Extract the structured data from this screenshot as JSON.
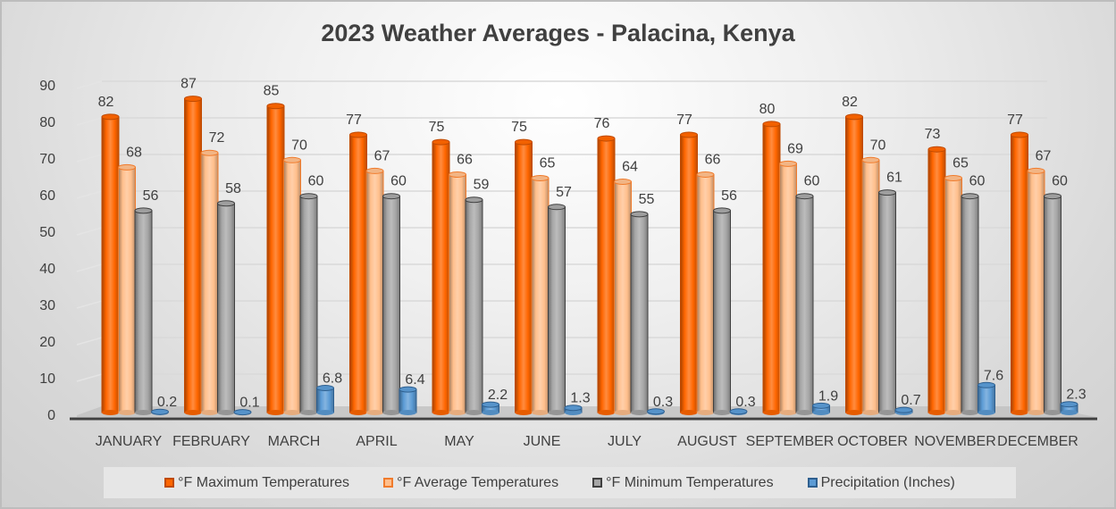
{
  "chart_data": {
    "type": "bar",
    "title": "2023 Weather Averages - Palacina, Kenya",
    "xlabel": "",
    "ylabel": "",
    "ylim": [
      0,
      90
    ],
    "yticks": [
      "0",
      "10",
      "20",
      "30",
      "40",
      "50",
      "60",
      "70",
      "80",
      "90"
    ],
    "grid": true,
    "legend_position": "bottom",
    "categories": [
      "JANUARY",
      "FEBRUARY",
      "MARCH",
      "APRIL",
      "MAY",
      "JUNE",
      "JULY",
      "AUGUST",
      "SEPTEMBER",
      "OCTOBER",
      "NOVEMBER",
      "DECEMBER"
    ],
    "series": [
      {
        "name": "°F Maximum Temperatures",
        "color": "#ff6600",
        "edge": "#c04a00",
        "values": [
          82,
          87,
          85,
          77,
          75,
          75,
          76,
          77,
          80,
          82,
          73,
          77
        ],
        "labels": [
          "82",
          "87",
          "85",
          "77",
          "75",
          "75",
          "76",
          "77",
          "80",
          "82",
          "73",
          "77"
        ]
      },
      {
        "name": "°F Average Temperatures",
        "color": "#ffbf8c",
        "edge": "#f07b2c",
        "values": [
          68,
          72,
          70,
          67,
          66,
          65,
          64,
          66,
          69,
          70,
          65,
          67
        ],
        "labels": [
          "68",
          "72",
          "70",
          "67",
          "66",
          "65",
          "64",
          "66",
          "69",
          "70",
          "65",
          "67"
        ]
      },
      {
        "name": "°F Minimum Temperatures",
        "color": "#a6a6a6",
        "edge": "#404040",
        "values": [
          56,
          58,
          60,
          60,
          59,
          57,
          55,
          56,
          60,
          61,
          60,
          60
        ],
        "labels": [
          "56",
          "58",
          "60",
          "60",
          "59",
          "57",
          "55",
          "56",
          "60",
          "61",
          "60",
          "60"
        ]
      },
      {
        "name": "Precipitation (Inches)",
        "color": "#5b9bd5",
        "edge": "#2e5f8f",
        "values": [
          0.2,
          0.1,
          6.8,
          6.4,
          2.2,
          1.3,
          0.3,
          0.3,
          1.9,
          0.7,
          7.6,
          2.3
        ],
        "labels": [
          "0.2",
          "0.1",
          "6.8",
          "6.4",
          "2.2",
          "1.3",
          "0.3",
          "0.3",
          "1.9",
          "0.7",
          "7.6",
          "2.3"
        ]
      }
    ]
  }
}
